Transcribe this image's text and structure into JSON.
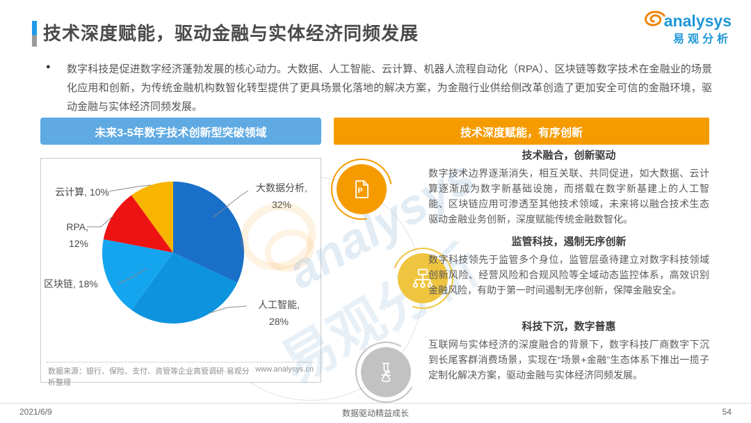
{
  "colors": {
    "title_bar_blue": "#1E9BE9",
    "title_bar_gray": "#9A9A9A",
    "left_header_bg": "#5FAAE3",
    "right_header_bg": "#F59B00",
    "icon_orange": "#F59B00",
    "icon_yellow": "#EFC53F",
    "icon_gray": "#C2C2C2",
    "logo_blue": "#1E96D8",
    "logo_orange": "#F08300"
  },
  "header": {
    "title": "技术深度赋能，驱动金融与实体经济同频发展",
    "logo_text": "analysys",
    "logo_subtext": "易观分析"
  },
  "intro": {
    "bullet": "●",
    "text": "数字科技是促进数字经济蓬勃发展的核心动力。大数据、人工智能、云计算、机器人流程自动化（RPA）、区块链等数字技术在金融业的场景化应用和创新，为传统金融机构数智化转型提供了更具场景化落地的解决方案，为金融行业供给侧改革创造了更加安全可信的金融环境，驱动金融与实体经济同频发展。"
  },
  "left_panel": {
    "header": "未来3-5年数字技术创新型突破领域",
    "source": "数据来源：银行、保险、支付、资管等企业高管调研·易观分析整理",
    "site": "www.analysys.cn"
  },
  "chart_data": {
    "type": "pie",
    "title": "未来3-5年数字技术创新型突破领域",
    "labels": [
      "大数据分析",
      "人工智能",
      "区块链",
      "RPA",
      "云计算"
    ],
    "values": [
      32,
      28,
      18,
      12,
      10
    ],
    "unit": "%",
    "colors": [
      "#1A6FC9",
      "#0E93DE",
      "#15A5EF",
      "#EE1313",
      "#F7B500"
    ],
    "start_angle_deg": 0,
    "direction": "clockwise",
    "legend_position": "callout-labels"
  },
  "pie_labels": {
    "bigdata_line1": "大数据分析,",
    "bigdata_line2": "32%",
    "ai_line1": "人工智能,",
    "ai_line2": "28%",
    "blockchain": "区块链, 18%",
    "rpa": "RPA, 12%",
    "cloud": "云计算, 10%"
  },
  "right_panel": {
    "header": "技术深度赋能，有序创新",
    "sections": [
      {
        "heading": "技术融合，创新驱动",
        "body": "数字技术边界逐渐消失，相互关联、共同促进，如大数据、云计算逐渐成为数字新基础设施，而搭载在数字新基建上的人工智能、区块链应用可渗透至其他技术领域，未来将以融合技术生态驱动金融业务创新，深度赋能传统金融数智化。",
        "icon": "document-p-icon"
      },
      {
        "heading": "监管科技，遏制无序创新",
        "body": "数字科技领先于监管多个身位，监管层亟待建立对数字科技领域创新风险、经营风险和合规风险等全域动态监控体系，高效识别金融风险，有助于第一时间遏制无序创新，保障金融安全。",
        "icon": "sitemap-icon"
      },
      {
        "heading": "科技下沉，数字普惠",
        "body": "互联网与实体经济的深度融合的背景下，数字科技厂商数字下沉到长尾客群消费场景，实现在“场景+金融”生态体系下推出一揽子定制化解决方案，驱动金融与实体经济同频发展。",
        "icon": "flask-icon"
      }
    ]
  },
  "watermark": {
    "line1": "analysys",
    "line2": "易观分析"
  },
  "footer": {
    "date": "2021/6/9",
    "slogan": "数据驱动精益成长",
    "page": "54"
  }
}
